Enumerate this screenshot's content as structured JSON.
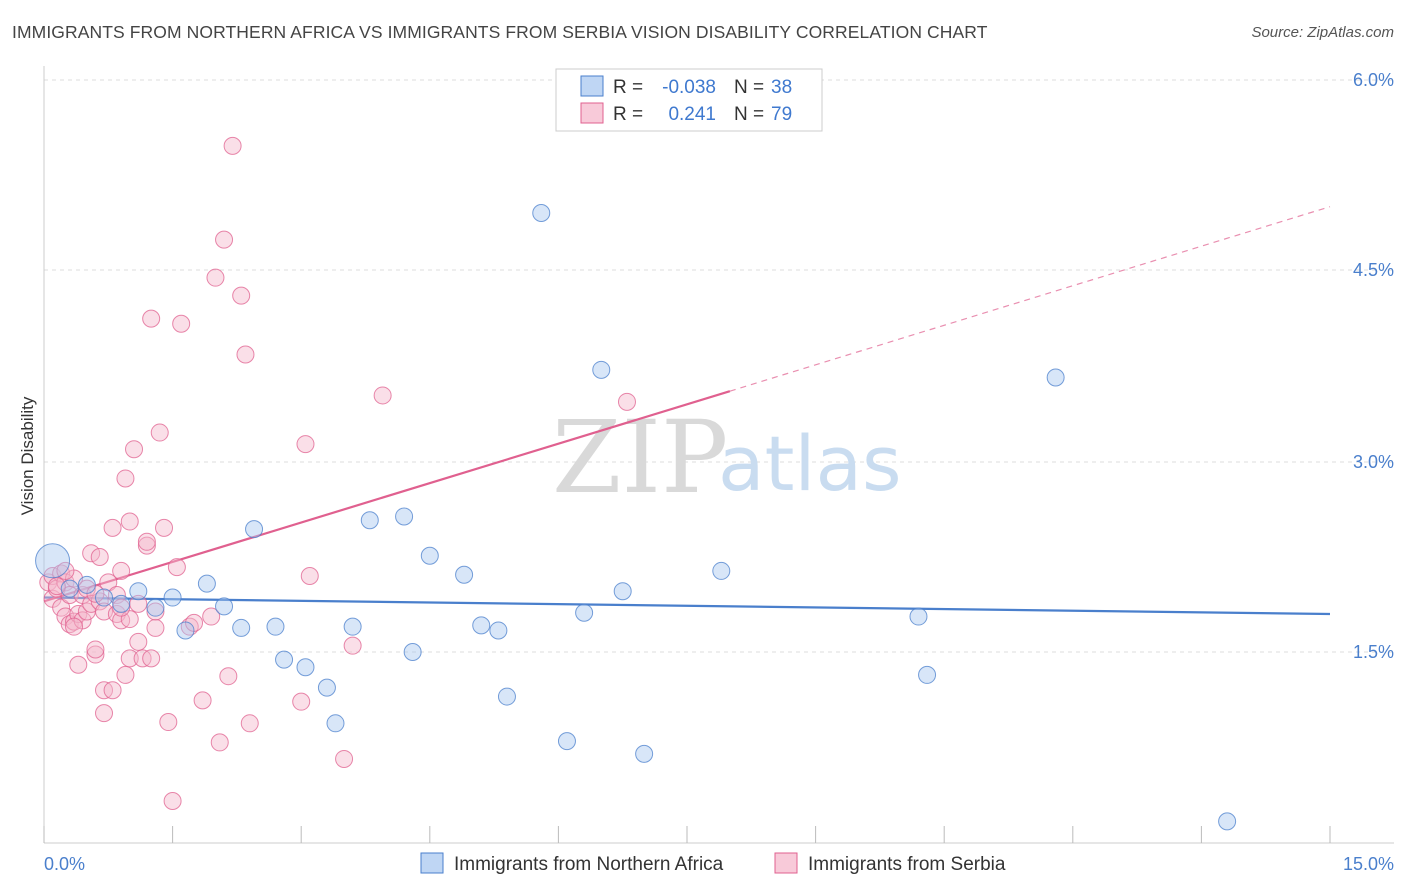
{
  "title": "IMMIGRANTS FROM NORTHERN AFRICA VS IMMIGRANTS FROM SERBIA VISION DISABILITY CORRELATION CHART",
  "source": "Source: ZipAtlas.com",
  "watermark": {
    "zip": "ZIP",
    "atlas": "atlas"
  },
  "colors": {
    "blue": "#4a7fcc",
    "blue_fill": "#a9c8f0",
    "pink": "#e0608f",
    "pink_fill": "#f5b8cc",
    "grid": "#dddddd"
  },
  "chart_data": {
    "type": "scatter",
    "title": "IMMIGRANTS FROM NORTHERN AFRICA VS IMMIGRANTS FROM SERBIA VISION DISABILITY CORRELATION CHART",
    "xlabel": "",
    "ylabel": "Vision Disability",
    "xlim": [
      0,
      15
    ],
    "ylim": [
      0,
      6.3
    ],
    "x_tick_labels": [
      "0.0%",
      "15.0%"
    ],
    "y_ticks": [
      1.5,
      3.0,
      4.5,
      6.0
    ],
    "y_tick_labels": [
      "1.5%",
      "3.0%",
      "4.5%",
      "6.0%"
    ],
    "legend": [
      {
        "r_label": "R =",
        "r_value": "-0.038",
        "n_label": "N =",
        "n_value": "38"
      },
      {
        "r_label": "R =",
        "r_value": "0.241",
        "n_label": "N =",
        "n_value": "79"
      }
    ],
    "series": [
      {
        "name": "Immigrants from Northern Africa",
        "color": "blue",
        "trend": {
          "x0": 0,
          "y0": 1.93,
          "x1": 15,
          "y1": 1.8,
          "solid_to": 15
        },
        "points": [
          {
            "x": 0.1,
            "y": 2.22,
            "big": true
          },
          {
            "x": 0.5,
            "y": 2.03
          },
          {
            "x": 0.7,
            "y": 1.93
          },
          {
            "x": 0.9,
            "y": 1.88
          },
          {
            "x": 1.1,
            "y": 1.98
          },
          {
            "x": 1.3,
            "y": 1.85
          },
          {
            "x": 1.5,
            "y": 1.93
          },
          {
            "x": 1.65,
            "y": 1.67
          },
          {
            "x": 1.9,
            "y": 2.04
          },
          {
            "x": 2.1,
            "y": 1.86
          },
          {
            "x": 2.3,
            "y": 1.69
          },
          {
            "x": 2.45,
            "y": 2.47
          },
          {
            "x": 2.7,
            "y": 1.7
          },
          {
            "x": 2.8,
            "y": 1.44
          },
          {
            "x": 3.05,
            "y": 1.38
          },
          {
            "x": 3.3,
            "y": 1.22
          },
          {
            "x": 3.4,
            "y": 0.94
          },
          {
            "x": 3.6,
            "y": 1.7
          },
          {
            "x": 3.8,
            "y": 2.54
          },
          {
            "x": 4.2,
            "y": 2.57
          },
          {
            "x": 4.3,
            "y": 1.5
          },
          {
            "x": 4.5,
            "y": 2.26
          },
          {
            "x": 4.9,
            "y": 2.11
          },
          {
            "x": 5.1,
            "y": 1.71
          },
          {
            "x": 5.3,
            "y": 1.67
          },
          {
            "x": 5.4,
            "y": 1.15
          },
          {
            "x": 5.8,
            "y": 4.95
          },
          {
            "x": 6.1,
            "y": 0.8
          },
          {
            "x": 6.3,
            "y": 1.81
          },
          {
            "x": 6.5,
            "y": 3.72
          },
          {
            "x": 6.75,
            "y": 1.98
          },
          {
            "x": 7.0,
            "y": 0.7
          },
          {
            "x": 7.9,
            "y": 2.14
          },
          {
            "x": 10.2,
            "y": 1.78
          },
          {
            "x": 10.3,
            "y": 1.32
          },
          {
            "x": 11.8,
            "y": 3.66
          },
          {
            "x": 13.8,
            "y": 0.17
          },
          {
            "x": 0.3,
            "y": 2.0
          }
        ]
      },
      {
        "name": "Immigrants from Serbia",
        "color": "pink",
        "trend": {
          "x0": 0,
          "y0": 1.9,
          "x1": 15,
          "y1": 5.0,
          "solid_to": 8.0
        },
        "points": [
          {
            "x": 0.05,
            "y": 2.05
          },
          {
            "x": 0.1,
            "y": 2.1
          },
          {
            "x": 0.1,
            "y": 1.92
          },
          {
            "x": 0.15,
            "y": 2.0
          },
          {
            "x": 0.2,
            "y": 1.85
          },
          {
            "x": 0.2,
            "y": 2.12
          },
          {
            "x": 0.25,
            "y": 1.78
          },
          {
            "x": 0.25,
            "y": 2.05
          },
          {
            "x": 0.3,
            "y": 1.72
          },
          {
            "x": 0.3,
            "y": 1.95
          },
          {
            "x": 0.35,
            "y": 1.74
          },
          {
            "x": 0.35,
            "y": 2.08
          },
          {
            "x": 0.4,
            "y": 1.8
          },
          {
            "x": 0.4,
            "y": 1.4
          },
          {
            "x": 0.45,
            "y": 1.95
          },
          {
            "x": 0.45,
            "y": 1.75
          },
          {
            "x": 0.5,
            "y": 2.0
          },
          {
            "x": 0.5,
            "y": 1.82
          },
          {
            "x": 0.55,
            "y": 2.28
          },
          {
            "x": 0.55,
            "y": 1.88
          },
          {
            "x": 0.6,
            "y": 1.48
          },
          {
            "x": 0.6,
            "y": 1.52
          },
          {
            "x": 0.65,
            "y": 1.9
          },
          {
            "x": 0.65,
            "y": 2.25
          },
          {
            "x": 0.7,
            "y": 1.82
          },
          {
            "x": 0.7,
            "y": 1.02
          },
          {
            "x": 0.75,
            "y": 2.05
          },
          {
            "x": 0.7,
            "y": 1.2
          },
          {
            "x": 0.8,
            "y": 2.48
          },
          {
            "x": 0.8,
            "y": 1.2
          },
          {
            "x": 0.85,
            "y": 1.8
          },
          {
            "x": 0.85,
            "y": 1.95
          },
          {
            "x": 0.9,
            "y": 2.14
          },
          {
            "x": 0.9,
            "y": 1.75
          },
          {
            "x": 0.95,
            "y": 2.87
          },
          {
            "x": 0.95,
            "y": 1.32
          },
          {
            "x": 1.0,
            "y": 2.53
          },
          {
            "x": 1.0,
            "y": 1.45
          },
          {
            "x": 1.05,
            "y": 3.1
          },
          {
            "x": 1.1,
            "y": 1.88
          },
          {
            "x": 1.1,
            "y": 1.58
          },
          {
            "x": 1.15,
            "y": 1.45
          },
          {
            "x": 1.2,
            "y": 2.34
          },
          {
            "x": 1.2,
            "y": 2.37
          },
          {
            "x": 1.25,
            "y": 1.45
          },
          {
            "x": 1.25,
            "y": 4.12
          },
          {
            "x": 1.3,
            "y": 1.69
          },
          {
            "x": 1.3,
            "y": 1.82
          },
          {
            "x": 1.35,
            "y": 3.23
          },
          {
            "x": 1.4,
            "y": 2.48
          },
          {
            "x": 1.45,
            "y": 0.95
          },
          {
            "x": 1.5,
            "y": 0.33
          },
          {
            "x": 1.55,
            "y": 2.17
          },
          {
            "x": 1.6,
            "y": 4.08
          },
          {
            "x": 1.7,
            "y": 1.7
          },
          {
            "x": 1.75,
            "y": 1.73
          },
          {
            "x": 1.85,
            "y": 1.12
          },
          {
            "x": 1.95,
            "y": 1.78
          },
          {
            "x": 2.0,
            "y": 4.44
          },
          {
            "x": 2.05,
            "y": 0.79
          },
          {
            "x": 2.1,
            "y": 4.74
          },
          {
            "x": 2.15,
            "y": 1.31
          },
          {
            "x": 2.2,
            "y": 5.48
          },
          {
            "x": 2.3,
            "y": 4.3
          },
          {
            "x": 2.35,
            "y": 3.84
          },
          {
            "x": 2.4,
            "y": 0.94
          },
          {
            "x": 3.0,
            "y": 1.11
          },
          {
            "x": 3.05,
            "y": 3.14
          },
          {
            "x": 3.1,
            "y": 2.1
          },
          {
            "x": 3.5,
            "y": 0.66
          },
          {
            "x": 3.6,
            "y": 1.55
          },
          {
            "x": 3.95,
            "y": 3.52
          },
          {
            "x": 6.8,
            "y": 3.47
          },
          {
            "x": 0.15,
            "y": 2.02
          },
          {
            "x": 0.35,
            "y": 1.7
          },
          {
            "x": 1.0,
            "y": 1.76
          },
          {
            "x": 0.6,
            "y": 1.96
          },
          {
            "x": 0.9,
            "y": 1.85
          },
          {
            "x": 0.25,
            "y": 2.14
          }
        ]
      }
    ]
  },
  "bottom_legend": [
    {
      "label": "Immigrants from Northern Africa",
      "color": "blue"
    },
    {
      "label": "Immigrants from Serbia",
      "color": "pink"
    }
  ]
}
